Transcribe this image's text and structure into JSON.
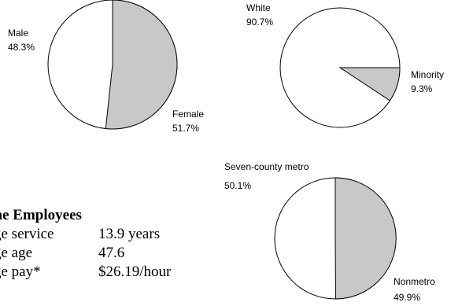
{
  "chart_data": [
    {
      "type": "pie",
      "slices": [
        {
          "label": "Male",
          "value": 48.3,
          "value_label": "48.3%",
          "color": "#ffffff"
        },
        {
          "label": "Female",
          "value": 51.7,
          "value_label": "51.7%",
          "color": "#c8c8c8"
        }
      ]
    },
    {
      "type": "pie",
      "slices": [
        {
          "label": "White",
          "value": 90.7,
          "value_label": "90.7%",
          "color": "#ffffff"
        },
        {
          "label": "Minority",
          "value": 9.3,
          "value_label": "9.3%",
          "color": "#c8c8c8"
        }
      ]
    },
    {
      "type": "pie",
      "slices": [
        {
          "label": "Seven-county metro",
          "value": 50.1,
          "value_label": "50.1%",
          "color": "#ffffff"
        },
        {
          "label": "Nonmetro",
          "value": 49.9,
          "value_label": "49.9%",
          "color": "#c8c8c8"
        }
      ]
    }
  ],
  "facts": {
    "title": "ime Employees",
    "rows": [
      {
        "label": "ge service",
        "value": "13.9 years"
      },
      {
        "label": "ge age",
        "value": "47.6"
      },
      {
        "label": "ge pay*",
        "value": "$26.19/hour"
      }
    ]
  }
}
